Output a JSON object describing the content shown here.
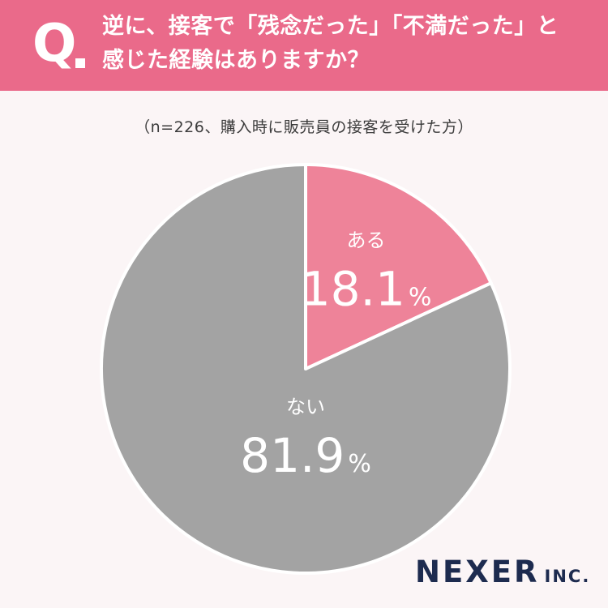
{
  "question": {
    "mark": "Q",
    "line1": "逆に、接客で「残念だった」「不満だった」と",
    "line2": "感じた経験はありますか？"
  },
  "note": "（n=226、購入時に販売員の接客を受けた方）",
  "chart_data": {
    "type": "pie",
    "title": "",
    "slices": [
      {
        "label": "ある",
        "value": 18.1,
        "display": "18.1",
        "unit": "%",
        "color": "#ee8399"
      },
      {
        "label": "ない",
        "value": 81.9,
        "display": "81.9",
        "unit": "%",
        "color": "#a3a3a3"
      }
    ],
    "start": "12 o'clock",
    "direction": "clockwise",
    "separator_color": "#ffffff"
  },
  "logo": {
    "main": "NEXER",
    "sub": "INC."
  }
}
